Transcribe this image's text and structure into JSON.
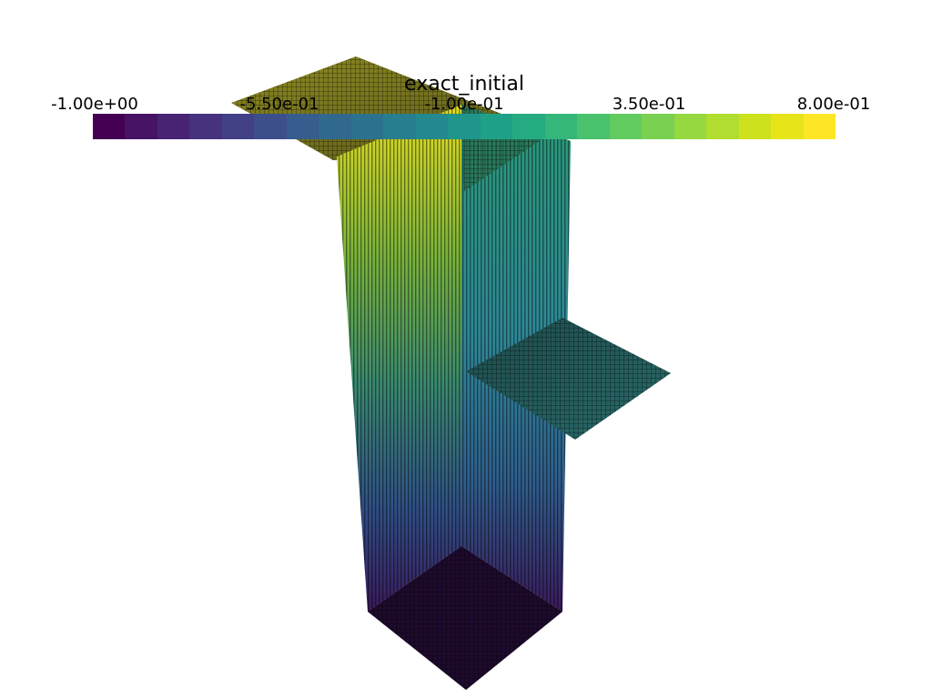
{
  "scalar_bar": {
    "title": "exact_initial",
    "tick_labels": [
      "-1.00e+00",
      "-5.50e-01",
      "-1.00e-01",
      "3.50e-01",
      "8.00e-01"
    ],
    "colors": [
      "#440154",
      "#471365",
      "#482374",
      "#46327e",
      "#424086",
      "#3c4f8a",
      "#365d8d",
      "#31688e",
      "#2c728e",
      "#277e8e",
      "#23898e",
      "#1f958b",
      "#1fa188",
      "#25ab82",
      "#35b779",
      "#4ac16d",
      "#62cb5f",
      "#7ad151",
      "#95d840",
      "#b0dd2f",
      "#cde11d",
      "#e7e419",
      "#fde725"
    ]
  },
  "scene": {
    "colors": {
      "yellow": "#e6de1e",
      "green": "#3a9a66",
      "teal": "#2a7d80",
      "blue": "#2f5d8c",
      "purple": "#3a1a5c",
      "dark": "#1d0a2c"
    }
  }
}
